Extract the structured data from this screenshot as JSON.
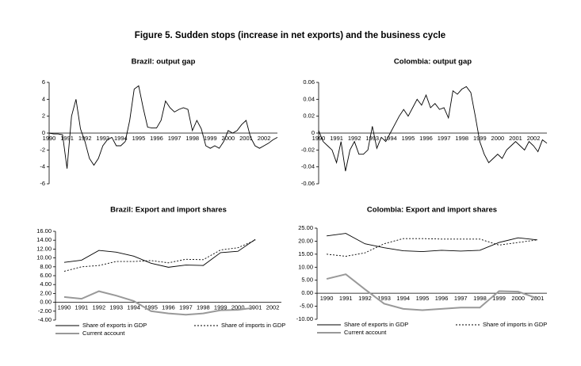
{
  "title": "Figure 5. Sudden stops (increase in net exports) and the business cycle",
  "chart_data": [
    {
      "type": "line",
      "title": "Brazil: output gap",
      "categories": [
        "1990",
        null,
        null,
        null,
        "1991",
        null,
        null,
        null,
        "1992",
        null,
        null,
        null,
        "1993",
        null,
        null,
        null,
        "1994",
        null,
        null,
        null,
        "1995",
        null,
        null,
        null,
        "1996",
        null,
        null,
        null,
        "1997",
        null,
        null,
        null,
        "1998",
        null,
        null,
        null,
        "1999",
        null,
        null,
        null,
        "2000",
        null,
        null,
        null,
        "2001",
        null,
        null,
        null,
        "2002",
        null,
        null,
        null
      ],
      "values": [
        0.0,
        -0.1,
        -0.1,
        -0.2,
        -4.2,
        2.0,
        4.0,
        0.5,
        -1.0,
        -3.0,
        -3.8,
        -3.0,
        -1.5,
        -0.8,
        -0.5,
        -1.5,
        -1.5,
        -1.0,
        1.5,
        5.2,
        5.6,
        3.0,
        0.7,
        0.6,
        0.6,
        1.5,
        3.8,
        3.0,
        2.5,
        2.8,
        3.0,
        2.8,
        0.3,
        1.5,
        0.5,
        -1.5,
        -1.8,
        -1.5,
        -1.8,
        -1.0,
        0.3,
        0.0,
        0.3,
        1.0,
        1.5,
        -0.5,
        -1.5,
        -1.8,
        -1.5,
        -1.2,
        -0.8,
        -0.5
      ],
      "color": "#000000",
      "ylim": [
        -6,
        6
      ],
      "yticks": [
        -6,
        -4,
        -2,
        0,
        2,
        4,
        6
      ],
      "grid": false
    },
    {
      "type": "line",
      "title": "Colombia: output gap",
      "categories": [
        "1990",
        null,
        null,
        null,
        "1991",
        null,
        null,
        null,
        "1992",
        null,
        null,
        null,
        "1993",
        null,
        null,
        null,
        "1994",
        null,
        null,
        null,
        "1995",
        null,
        null,
        null,
        "1996",
        null,
        null,
        null,
        "1997",
        null,
        null,
        null,
        "1998",
        null,
        null,
        null,
        "1999",
        null,
        null,
        null,
        "2000",
        null,
        null,
        null,
        "2001",
        null,
        null,
        null,
        "2002",
        null,
        null,
        null
      ],
      "values": [
        0.003,
        -0.01,
        -0.015,
        -0.02,
        -0.035,
        -0.01,
        -0.045,
        -0.02,
        -0.01,
        -0.025,
        -0.025,
        -0.02,
        0.008,
        -0.018,
        -0.005,
        -0.01,
        0.0,
        0.01,
        0.02,
        0.028,
        0.02,
        0.03,
        0.04,
        0.033,
        0.045,
        0.03,
        0.035,
        0.028,
        0.03,
        0.018,
        0.05,
        0.046,
        0.052,
        0.055,
        0.048,
        0.02,
        -0.01,
        -0.025,
        -0.035,
        -0.03,
        -0.025,
        -0.03,
        -0.02,
        -0.015,
        -0.01,
        -0.015,
        -0.02,
        -0.01,
        -0.015,
        -0.022,
        -0.008,
        -0.012
      ],
      "color": "#000000",
      "ylim": [
        -0.06,
        0.06
      ],
      "yticks": [
        -0.06,
        -0.04,
        -0.02,
        0,
        0.02,
        0.04,
        0.06
      ],
      "grid": false
    },
    {
      "type": "line",
      "title": "Brazil: Export and import shares",
      "categories": [
        "1990",
        "1991",
        "1992",
        "1993",
        "1994",
        "1995",
        "1996",
        "1997",
        "1998",
        "1999",
        "2000",
        "2001",
        "2002"
      ],
      "series": [
        {
          "name": "Share of exports in GDP",
          "color": "#000000",
          "dash": "solid",
          "values": [
            9.0,
            9.5,
            11.7,
            11.3,
            10.4,
            8.8,
            7.9,
            8.4,
            8.3,
            11.2,
            11.5,
            14.2,
            null
          ]
        },
        {
          "name": "Share of imports in GDP",
          "color": "#000000",
          "dash": "dotted",
          "values": [
            7.0,
            8.0,
            8.3,
            9.2,
            9.2,
            9.4,
            8.9,
            9.7,
            9.6,
            11.8,
            12.3,
            14.0,
            null
          ]
        },
        {
          "name": "Current account",
          "color": "#999999",
          "dash": "solid",
          "values": [
            1.2,
            0.8,
            2.5,
            1.5,
            0.3,
            -2.0,
            -2.5,
            -2.8,
            -2.5,
            -1.8,
            -1.7,
            -1.2,
            null
          ]
        }
      ],
      "ylim": [
        -4,
        16
      ],
      "yticks": [
        {
          "value": -4,
          "label": "-4.00"
        },
        {
          "value": -2,
          "label": "-2.00"
        },
        {
          "value": 0,
          "label": "0.00"
        },
        {
          "value": 2,
          "label": "2.00"
        },
        {
          "value": 4,
          "label": "4.00"
        },
        {
          "value": 6,
          "label": "6.00"
        },
        {
          "value": 8,
          "label": "8.00"
        },
        {
          "value": 10,
          "label": "10.00"
        },
        {
          "value": 12,
          "label": "12.00"
        },
        {
          "value": 14,
          "label": "14.00"
        },
        {
          "value": 16,
          "label": "16.00"
        }
      ],
      "grid": false
    },
    {
      "type": "line",
      "title": "Colombia: Export and import shares",
      "categories": [
        "1990",
        "1991",
        "1992",
        "1993",
        "1994",
        "1995",
        "1996",
        "1997",
        "1998",
        "1999",
        "2000",
        "2001"
      ],
      "series": [
        {
          "name": "Share of exports in GDP",
          "color": "#000000",
          "dash": "solid",
          "values": [
            22.0,
            23.0,
            19.0,
            17.5,
            16.3,
            16.0,
            16.5,
            16.2,
            16.5,
            19.5,
            21.3,
            20.5
          ]
        },
        {
          "name": "Share of imports in GDP",
          "color": "#000000",
          "dash": "dotted",
          "values": [
            15.0,
            14.2,
            15.5,
            19.0,
            21.0,
            21.0,
            20.8,
            20.8,
            20.8,
            18.5,
            19.5,
            20.5
          ]
        },
        {
          "name": "Current account",
          "color": "#999999",
          "dash": "solid",
          "values": [
            5.5,
            7.3,
            1.5,
            -4.0,
            -6.0,
            -6.5,
            -6.0,
            -5.5,
            -5.5,
            0.8,
            0.6,
            -2.0
          ]
        }
      ],
      "ylim": [
        -10,
        25
      ],
      "yticks": [
        {
          "value": -10,
          "label": "-10.00"
        },
        {
          "value": -5,
          "label": "-5.00"
        },
        {
          "value": 0,
          "label": "0.00"
        },
        {
          "value": 5,
          "label": "5.00"
        },
        {
          "value": 10,
          "label": "10.00"
        },
        {
          "value": 15,
          "label": "15.00"
        },
        {
          "value": 20,
          "label": "20.00"
        },
        {
          "value": 25,
          "label": "25.00"
        }
      ],
      "grid": false
    }
  ]
}
